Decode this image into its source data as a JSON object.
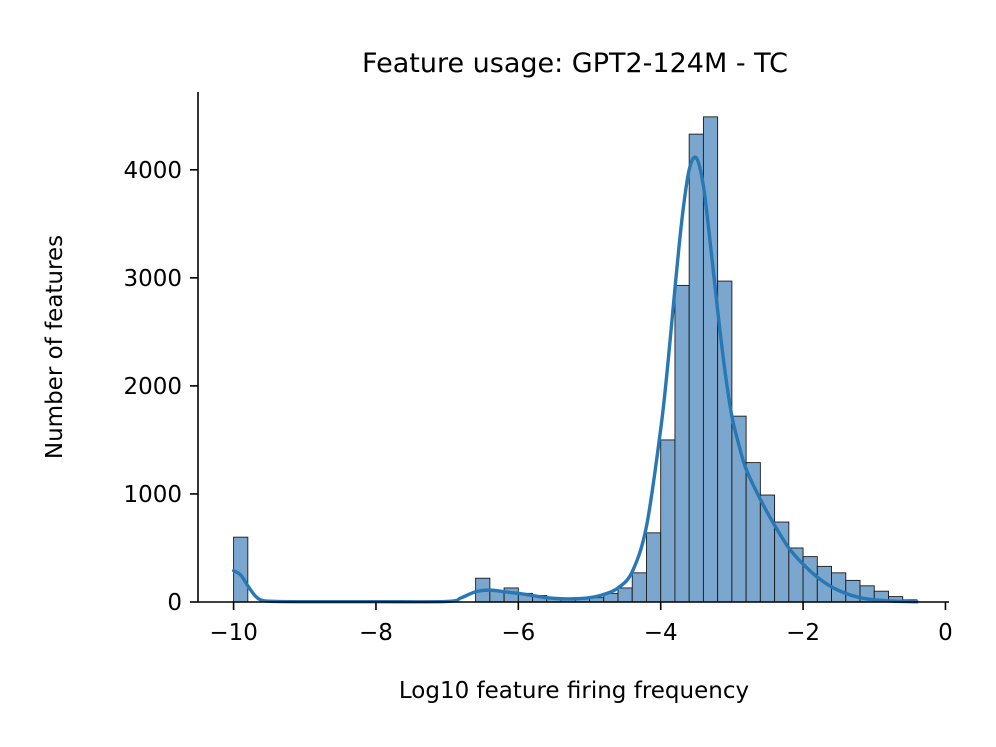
{
  "chart_data": {
    "type": "histogram",
    "title": "Feature usage: GPT2-124M - TC",
    "xlabel": "Log10 feature firing frequency",
    "ylabel": "Number of features",
    "xlim": [
      -10.5,
      0.05
    ],
    "ylim": [
      0,
      4720
    ],
    "xticks": [
      -10,
      -8,
      -6,
      -4,
      -2,
      0
    ],
    "xtick_labels": [
      "−10",
      "−8",
      "−6",
      "−4",
      "−2",
      "0"
    ],
    "yticks": [
      0,
      1000,
      2000,
      3000,
      4000
    ],
    "ytick_labels": [
      "0",
      "1000",
      "2000",
      "3000",
      "4000"
    ],
    "grid": false,
    "legend": "none",
    "colors": {
      "bar_fill": "#7ba6cd",
      "bar_edge": "#1a1a1a",
      "kde_line": "#2878b5"
    },
    "series": [
      {
        "kind": "bars",
        "bin_left_edges": [
          -10.0,
          -9.8,
          -9.6,
          -9.4,
          -9.2,
          -9.0,
          -8.8,
          -8.6,
          -8.4,
          -8.2,
          -8.0,
          -7.8,
          -7.6,
          -7.4,
          -7.2,
          -7.0,
          -6.8,
          -6.6,
          -6.4,
          -6.2,
          -6.0,
          -5.8,
          -5.6,
          -5.4,
          -5.2,
          -5.0,
          -4.8,
          -4.6,
          -4.4,
          -4.2,
          -4.0,
          -3.8,
          -3.6,
          -3.4,
          -3.2,
          -3.0,
          -2.8,
          -2.6,
          -2.4,
          -2.2,
          -2.0,
          -1.8,
          -1.6,
          -1.4,
          -1.2,
          -1.0,
          -0.8,
          -0.6
        ],
        "bin_width": 0.2,
        "values": [
          600,
          0,
          0,
          0,
          0,
          0,
          0,
          0,
          0,
          0,
          0,
          0,
          0,
          0,
          0,
          0,
          0,
          220,
          100,
          130,
          80,
          60,
          40,
          30,
          30,
          40,
          80,
          130,
          270,
          640,
          1500,
          2930,
          4330,
          4490,
          2970,
          1720,
          1290,
          990,
          740,
          500,
          420,
          330,
          270,
          200,
          150,
          100,
          50,
          20
        ]
      },
      {
        "kind": "kde",
        "x": [
          -10.0,
          -9.9,
          -9.8,
          -9.7,
          -9.6,
          -9.4,
          -9.0,
          -8.0,
          -7.0,
          -6.8,
          -6.6,
          -6.4,
          -6.2,
          -6.0,
          -5.8,
          -5.6,
          -5.4,
          -5.2,
          -5.0,
          -4.8,
          -4.6,
          -4.4,
          -4.2,
          -4.0,
          -3.9,
          -3.8,
          -3.7,
          -3.6,
          -3.5,
          -3.4,
          -3.3,
          -3.2,
          -3.1,
          -3.0,
          -2.9,
          -2.8,
          -2.6,
          -2.4,
          -2.2,
          -2.0,
          -1.8,
          -1.6,
          -1.4,
          -1.2,
          -1.0,
          -0.8,
          -0.6,
          -0.4
        ],
        "y": [
          290,
          250,
          150,
          60,
          15,
          5,
          3,
          3,
          5,
          40,
          95,
          110,
          95,
          80,
          60,
          40,
          30,
          30,
          40,
          70,
          130,
          280,
          700,
          1600,
          2200,
          2900,
          3550,
          4000,
          4110,
          3850,
          3300,
          2700,
          2150,
          1720,
          1450,
          1230,
          950,
          710,
          500,
          350,
          230,
          140,
          80,
          40,
          20,
          10,
          5,
          2
        ]
      }
    ]
  }
}
